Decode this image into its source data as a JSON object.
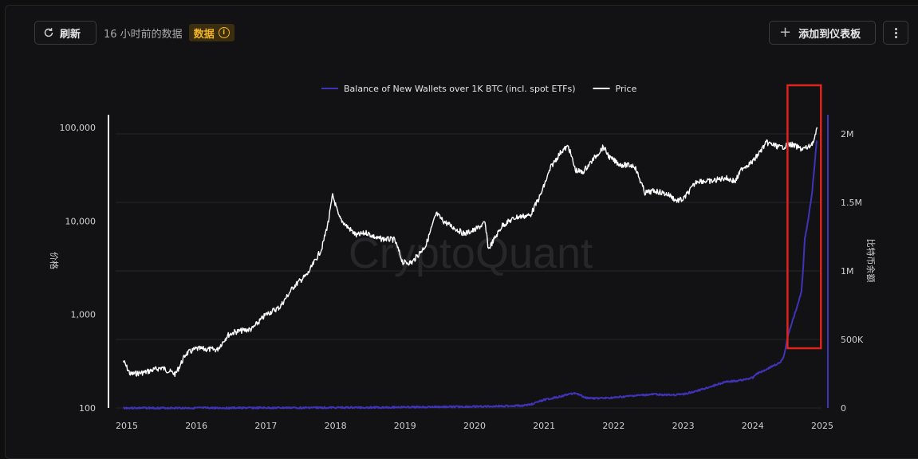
{
  "toolbar": {
    "refresh_label": "刷新",
    "updated_text": "16 小时前的数据",
    "badge_label": "数据",
    "badge_icon": "info-icon",
    "add_dashboard_label": "添加到仪表板",
    "more_icon": "more-vertical-icon"
  },
  "colors": {
    "background": "#121214",
    "price_line": "#ffffff",
    "balance_line": "#3f33b8",
    "badge": "#f0b429",
    "highlight_box": "#e0241b"
  },
  "chart_data": {
    "type": "line",
    "watermark": "CryptoQuant",
    "x_ticks": [
      "2015",
      "2016",
      "2017",
      "2018",
      "2019",
      "2020",
      "2021",
      "2022",
      "2023",
      "2024",
      "2025"
    ],
    "y_left": {
      "label": "价格",
      "scale": "log",
      "range": [
        100,
        100000
      ],
      "ticks": [
        "100,000",
        "10,000",
        "1,000",
        "100"
      ]
    },
    "y_right": {
      "label": "比特币余额",
      "range": [
        0,
        2000000
      ],
      "ticks": [
        "2M",
        "1.5M",
        "1M",
        "500K",
        "0"
      ]
    },
    "grid": true,
    "legend_position": "top-center",
    "series": [
      {
        "name": "Balance of New Wallets over 1K BTC (incl. spot ETFs)",
        "axis": "right",
        "x": [
          2014.95,
          2016.0,
          2017.0,
          2018.0,
          2018.5,
          2019.0,
          2019.5,
          2020.0,
          2020.5,
          2020.7,
          2020.8,
          2021.0,
          2021.2,
          2021.35,
          2021.45,
          2021.6,
          2021.8,
          2022.0,
          2022.3,
          2022.6,
          2022.8,
          2023.0,
          2023.3,
          2023.6,
          2023.8,
          2024.0,
          2024.05,
          2024.15,
          2024.3,
          2024.4,
          2024.45,
          2024.5,
          2024.55,
          2024.6,
          2024.65,
          2024.7,
          2024.72,
          2024.75,
          2024.78,
          2024.8,
          2024.85,
          2024.88,
          2024.92
        ],
        "y": [
          0,
          0,
          1000,
          3000,
          4000,
          6000,
          8000,
          10000,
          15000,
          18000,
          25000,
          60000,
          80000,
          100000,
          110000,
          75000,
          70000,
          75000,
          90000,
          100000,
          95000,
          100000,
          140000,
          190000,
          200000,
          220000,
          250000,
          270000,
          310000,
          330000,
          380000,
          520000,
          600000,
          680000,
          760000,
          850000,
          980000,
          1240000,
          1320000,
          1380000,
          1560000,
          1720000,
          1950000
        ]
      },
      {
        "name": "Price",
        "axis": "left",
        "x": [
          2014.95,
          2015.05,
          2015.25,
          2015.5,
          2015.7,
          2015.85,
          2016.0,
          2016.3,
          2016.45,
          2016.55,
          2016.8,
          2017.0,
          2017.2,
          2017.4,
          2017.6,
          2017.8,
          2017.9,
          2017.96,
          2018.05,
          2018.15,
          2018.3,
          2018.45,
          2018.6,
          2018.85,
          2018.97,
          2019.1,
          2019.3,
          2019.45,
          2019.55,
          2019.7,
          2019.85,
          2020.0,
          2020.15,
          2020.2,
          2020.4,
          2020.6,
          2020.8,
          2020.95,
          2021.1,
          2021.25,
          2021.35,
          2021.45,
          2021.55,
          2021.7,
          2021.85,
          2021.95,
          2022.1,
          2022.3,
          2022.45,
          2022.6,
          2022.8,
          2022.9,
          2023.0,
          2023.2,
          2023.4,
          2023.6,
          2023.75,
          2023.85,
          2024.0,
          2024.2,
          2024.4,
          2024.55,
          2024.7,
          2024.8,
          2024.88,
          2024.93
        ],
        "y": [
          320,
          230,
          240,
          270,
          230,
          380,
          430,
          420,
          600,
          650,
          700,
          1000,
          1200,
          2000,
          2700,
          5000,
          10000,
          19000,
          11000,
          9000,
          7000,
          7500,
          6500,
          6300,
          3600,
          3600,
          5500,
          12000,
          10000,
          8500,
          7300,
          8000,
          9500,
          5000,
          9000,
          11000,
          11500,
          19000,
          38000,
          56000,
          63000,
          35000,
          33000,
          45000,
          62000,
          47000,
          40000,
          39000,
          20000,
          21000,
          19000,
          16500,
          17000,
          27000,
          26500,
          29000,
          26500,
          37000,
          43000,
          69000,
          61000,
          66000,
          59000,
          61000,
          72000,
          98000
        ]
      }
    ],
    "annotation": {
      "type": "highlight-box",
      "x_range": [
        2024.5,
        2024.98
      ],
      "color": "#e0241b"
    }
  }
}
